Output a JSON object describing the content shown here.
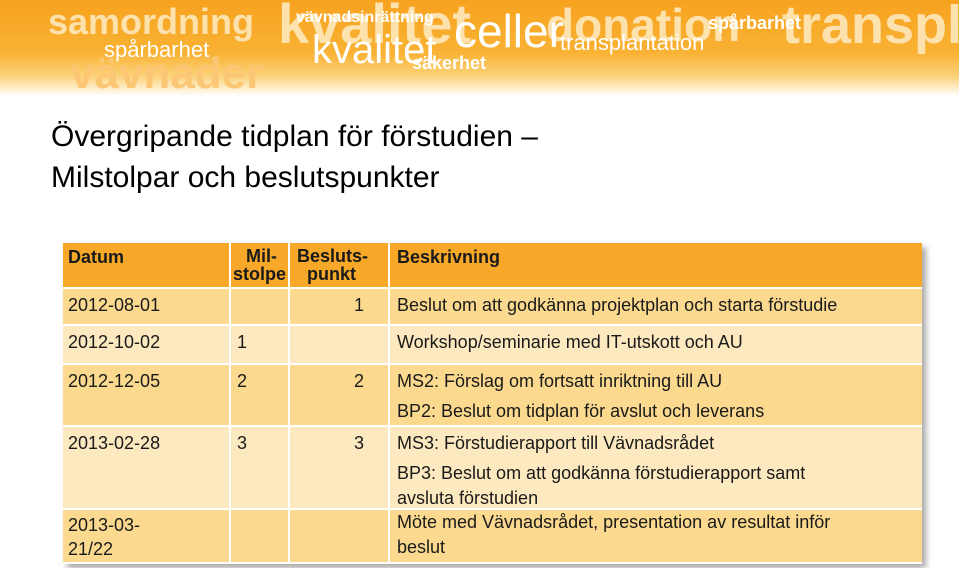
{
  "banner": {
    "words": [
      "samordning",
      "spårbarhet",
      "vävnader",
      "kvalitet",
      "vävnadsinrättning",
      "kvalitet",
      "säkerhet",
      "celler",
      "donation",
      "transplantation",
      "spårbarhet",
      "transpl"
    ]
  },
  "title": {
    "line1": "Övergripande tidplan för förstudien –",
    "line2": "Milstolpar och beslutspunkter"
  },
  "table": {
    "headers": {
      "datum": "Datum",
      "milstolpe_l1": "Mil-",
      "milstolpe_l2": "stolpe",
      "beslutspunkt_l1": "Besluts-",
      "beslutspunkt_l2": "punkt",
      "beskrivning": "Beskrivning"
    },
    "rows": [
      {
        "datum": "2012-08-01",
        "milstolpe": "",
        "beslutspunkt": "1",
        "beskrivning": [
          "Beslut om att godkänna projektplan och starta förstudie"
        ]
      },
      {
        "datum": "2012-10-02",
        "milstolpe": "1",
        "beslutspunkt": "",
        "beskrivning": [
          "Workshop/seminarie med IT-utskott och AU"
        ]
      },
      {
        "datum": "2012-12-05",
        "milstolpe": "2",
        "beslutspunkt": "2",
        "beskrivning": [
          "MS2: Förslag om fortsatt inriktning till AU",
          "BP2: Beslut om tidplan för avslut och leverans"
        ]
      },
      {
        "datum": "2013-02-28",
        "milstolpe": "3",
        "beslutspunkt": "3",
        "beskrivning": [
          "MS3: Förstudierapport till Vävnadsrådet",
          "BP3: Beslut om att godkänna förstudierapport samt",
          "avsluta förstudien"
        ]
      },
      {
        "datum_l1": "2013-03-",
        "datum_l2": "21/22",
        "milstolpe": "",
        "beslutspunkt": "",
        "beskrivning": [
          "Möte med Vävnadsrådet, presentation av resultat inför",
          "beslut"
        ]
      }
    ]
  }
}
